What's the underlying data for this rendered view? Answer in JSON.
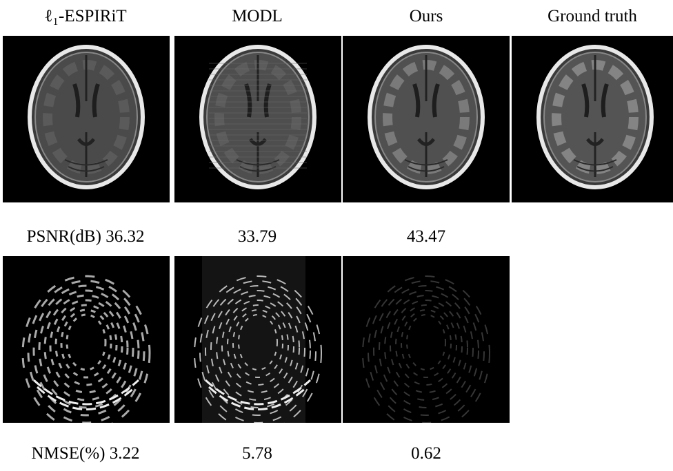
{
  "columns": [
    "ℓ₁-ESPIRiT",
    "MODL",
    "Ours",
    "Ground truth"
  ],
  "psnr": {
    "label": "PSNR(dB)",
    "values": [
      36.32,
      33.79,
      43.47
    ]
  },
  "nmse": {
    "label": "NMSE(%)",
    "values": [
      3.22,
      5.78,
      0.62
    ]
  }
}
